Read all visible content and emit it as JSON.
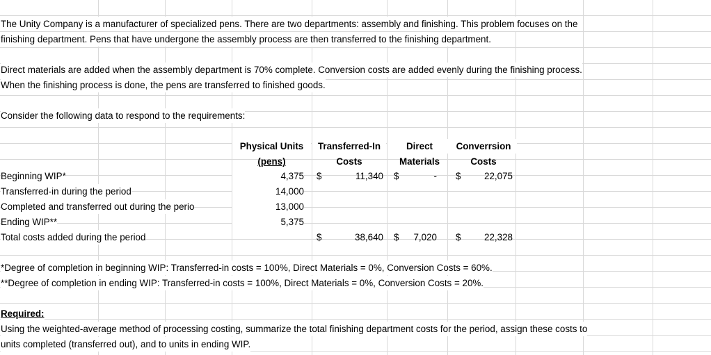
{
  "paragraphs": [
    [
      "The Unity Company is a manufacturer of specialized pens. There are two departments: assembly and finishing. This problem focuses on the",
      "finishing department. Pens that have undergone the assembly process are then transferred to the finishing department."
    ],
    [
      "Direct materials are added when the assembly department is 70% complete. Conversion costs are added evenly during the finishing process.",
      "When the finishing process is done, the pens are transferred to finished goods."
    ],
    [
      "Consider the following data to respond to the requirements:"
    ]
  ],
  "table": {
    "currency": "$",
    "headers": [
      [
        "Physical Units",
        "(pens)"
      ],
      [
        "Transferred-In",
        "Costs"
      ],
      [
        "Direct",
        "Materials"
      ],
      [
        "Converrsion",
        "Costs"
      ]
    ],
    "rows": [
      {
        "label": "Beginning WIP*",
        "units": "4,375",
        "transferred_in": "11,340",
        "direct_materials": "-",
        "conversion": "22,075"
      },
      {
        "label": "Transferred-in during the period",
        "units": "14,000"
      },
      {
        "label": "Completed and transferred out during the perio",
        "units": "13,000"
      },
      {
        "label": "Ending WIP**",
        "units": "5,375"
      },
      {
        "label": "Total costs added during the period",
        "transferred_in": "38,640",
        "direct_materials": "7,020",
        "conversion": "22,328"
      }
    ]
  },
  "notes": [
    "*Degree of completion in beginning WIP: Transferred-in costs = 100%, Direct Materials = 0%, Conversion Costs = 60%.",
    "**Degree of completion in ending WIP: Transferred-in costs = 100%, Direct Materials = 0%, Conversion Costs = 20%."
  ],
  "required": {
    "heading": "Required:",
    "lines": [
      "Using the weighted-average method of processing costing, summarize the total finishing department costs for the period, assign these costs to",
      "units completed (transferred out), and to units in ending WIP."
    ]
  }
}
